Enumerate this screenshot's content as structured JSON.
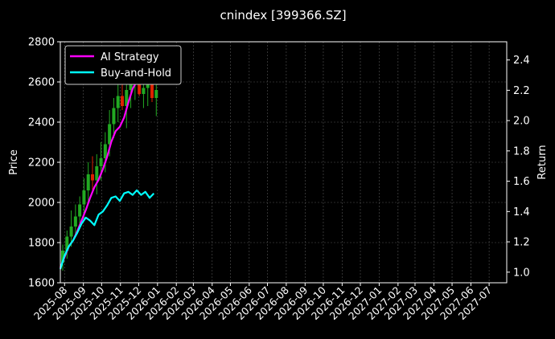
{
  "chart_data": {
    "type": "line",
    "title": "cnindex [399366.SZ]",
    "xlabel": "",
    "ylabel": "Price",
    "y2label": "Return",
    "ylim": [
      1600,
      2800
    ],
    "y2lim": [
      0.93,
      2.52
    ],
    "yticks": [
      1600,
      1800,
      2000,
      2200,
      2400,
      2600,
      2800
    ],
    "y2ticks": [
      1.0,
      1.2,
      1.4,
      1.6,
      1.8,
      2.0,
      2.2,
      2.4
    ],
    "y2tick_labels": [
      "1.0",
      "1.2",
      "1.4",
      "1.6",
      "1.8",
      "2.0",
      "2.2",
      "2.4"
    ],
    "xlim": [
      "2025-07-25",
      "2027-07-30"
    ],
    "xticks": [
      "2025-08",
      "2025-09",
      "2025-10",
      "2025-11",
      "2025-12",
      "2026-01",
      "2026-02",
      "2026-03",
      "2026-04",
      "2026-05",
      "2026-06",
      "2026-07",
      "2026-08",
      "2026-09",
      "2026-10",
      "2026-11",
      "2026-12",
      "2027-01",
      "2027-02",
      "2027-03",
      "2027-04",
      "2027-05",
      "2027-06",
      "2027-07"
    ],
    "grid": true,
    "legend": "top-left",
    "background": "#000000",
    "candlestick": {
      "name": "Price",
      "up_color": "#22aa22",
      "down_color": "#dd2200",
      "dates": [
        "2025-07-25",
        "2025-08-01",
        "2025-08-08",
        "2025-08-15",
        "2025-08-22",
        "2025-08-29",
        "2025-09-05",
        "2025-09-12",
        "2025-09-19",
        "2025-09-26",
        "2025-10-03",
        "2025-10-10",
        "2025-10-17",
        "2025-10-24",
        "2025-10-31",
        "2025-11-07",
        "2025-11-14",
        "2025-11-21",
        "2025-11-28",
        "2025-12-05",
        "2025-12-12",
        "2025-12-19",
        "2025-12-26"
      ],
      "open": [
        1700,
        1760,
        1830,
        1880,
        1930,
        1990,
        2060,
        2140,
        2110,
        2180,
        2220,
        2290,
        2390,
        2470,
        2530,
        2480,
        2560,
        2590,
        2610,
        2540,
        2570,
        2600,
        2520
      ],
      "high": [
        1790,
        1860,
        1960,
        1990,
        2030,
        2120,
        2200,
        2230,
        2240,
        2300,
        2350,
        2460,
        2520,
        2610,
        2640,
        2620,
        2660,
        2720,
        2730,
        2680,
        2700,
        2690,
        2620
      ],
      "low": [
        1660,
        1720,
        1780,
        1830,
        1880,
        1920,
        1990,
        2050,
        2040,
        2110,
        2150,
        2230,
        2320,
        2400,
        2460,
        2370,
        2470,
        2510,
        2530,
        2470,
        2480,
        2500,
        2430
      ],
      "close": [
        1760,
        1830,
        1880,
        1930,
        1990,
        2060,
        2140,
        2110,
        2180,
        2220,
        2290,
        2390,
        2470,
        2530,
        2480,
        2560,
        2590,
        2610,
        2540,
        2570,
        2600,
        2520,
        2560
      ]
    },
    "series": [
      {
        "name": "AI Strategy",
        "color": "#ff00ff",
        "axis": "right",
        "x": [
          "2025-07-25",
          "2025-08-01",
          "2025-08-08",
          "2025-08-15",
          "2025-08-22",
          "2025-08-29",
          "2025-09-05",
          "2025-09-12",
          "2025-09-19",
          "2025-09-26",
          "2025-10-03",
          "2025-10-10",
          "2025-10-17",
          "2025-10-24",
          "2025-10-31",
          "2025-11-07",
          "2025-11-14",
          "2025-11-21",
          "2025-11-28",
          "2025-12-05",
          "2025-12-12",
          "2025-12-19"
        ],
        "values": [
          1.03,
          1.1,
          1.17,
          1.21,
          1.27,
          1.34,
          1.41,
          1.49,
          1.56,
          1.61,
          1.68,
          1.76,
          1.86,
          1.93,
          1.96,
          2.02,
          2.12,
          2.21,
          2.26,
          2.34,
          2.4,
          2.46
        ]
      },
      {
        "name": "Buy-and-Hold",
        "color": "#00ffff",
        "axis": "right",
        "x": [
          "2025-07-25",
          "2025-08-01",
          "2025-08-08",
          "2025-08-15",
          "2025-08-22",
          "2025-08-29",
          "2025-09-05",
          "2025-09-12",
          "2025-09-19",
          "2025-09-26",
          "2025-10-03",
          "2025-10-10",
          "2025-10-17",
          "2025-10-24",
          "2025-10-31",
          "2025-11-07",
          "2025-11-14",
          "2025-11-21",
          "2025-11-28",
          "2025-12-05",
          "2025-12-12",
          "2025-12-19",
          "2025-12-26"
        ],
        "values": [
          1.02,
          1.11,
          1.17,
          1.21,
          1.26,
          1.32,
          1.36,
          1.34,
          1.31,
          1.38,
          1.4,
          1.44,
          1.49,
          1.5,
          1.47,
          1.52,
          1.53,
          1.51,
          1.54,
          1.51,
          1.53,
          1.49,
          1.52
        ]
      }
    ]
  }
}
